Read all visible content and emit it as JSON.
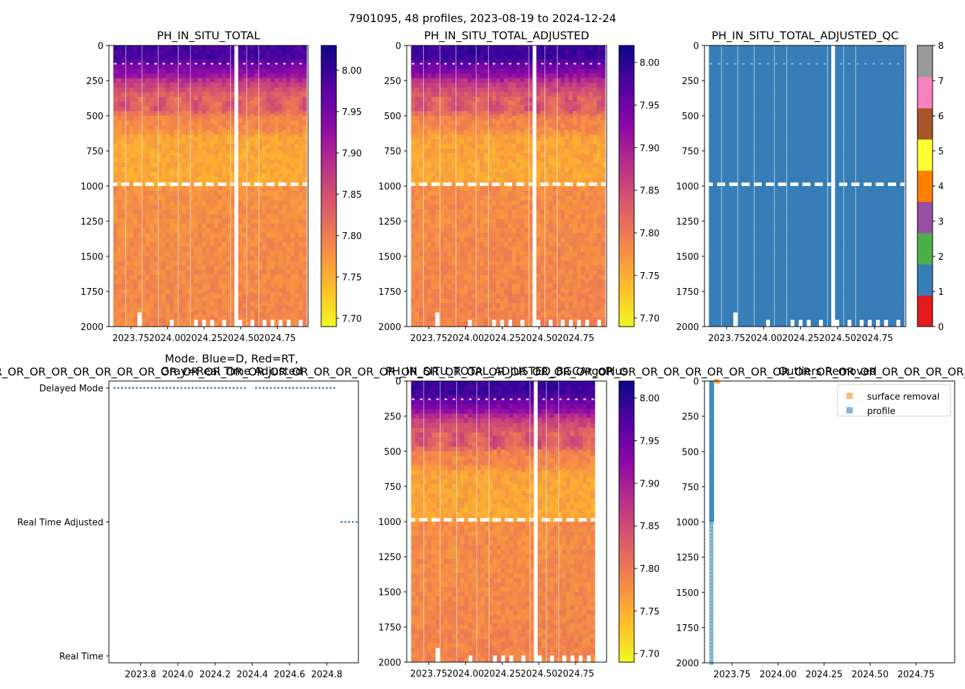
{
  "figure": {
    "suptitle": "7901095, 48 profiles, 2023-08-19 to 2024-12-24",
    "overflow_text": "R_OR_OR_OR_OR_OR_OR_OR_OR_OR_OR_OR_OR_OR_OR_OR_OR_OR_OR_OR_OR_OR_OR_OR_OR_OR_OR_OR_OR_OR_OR_OR_OR_OR_OR_OR_OR_OR_OR_OR_OR_OR_OR_OR_OR_OR_OR_OR_OR_OR_OR_OR_OR_OR_OR_OR_OR_OR_OR_OR_OR_OR_OR_OR_OR_"
  },
  "colors": {
    "qc_blue": "#377eb8",
    "mode_dots": "#1f77b4",
    "surface_removal": "#ff7f0e",
    "profile": "#1f77b4"
  },
  "chart_data": [
    {
      "id": "ph_in_situ_total",
      "type": "heatmap",
      "title": "PH_IN_SITU_TOTAL",
      "xlabel": "",
      "ylabel": "",
      "xlim": [
        2023.6,
        2024.96
      ],
      "ylim": [
        2000,
        0
      ],
      "xticks": [
        2023.75,
        2024.0,
        2024.25,
        2024.5,
        2024.75
      ],
      "xtick_labels": [
        "2023.75",
        "2024.00",
        "2024.25",
        "2024.50",
        "2024.75"
      ],
      "yticks": [
        0,
        250,
        500,
        750,
        1000,
        1250,
        1500,
        1750,
        2000
      ],
      "ytick_labels": [
        "0",
        "250",
        "500",
        "750",
        "1000",
        "1250",
        "1500",
        "1750",
        "2000"
      ],
      "colorbar": {
        "cmap": "plasma_r",
        "range": [
          7.69,
          8.03
        ],
        "ticks": [
          7.7,
          7.75,
          7.8,
          7.85,
          7.9,
          7.95,
          8.0
        ],
        "tick_labels": [
          "7.70",
          "7.75",
          "7.80",
          "7.85",
          "7.90",
          "7.95",
          "8.00"
        ]
      },
      "profile_start": 2023.63,
      "profile_end": 2024.95,
      "profile_count": 48,
      "gap": [
        2024.44,
        2024.47
      ]
    },
    {
      "id": "ph_in_situ_total_adjusted",
      "type": "heatmap",
      "title": "PH_IN_SITU_TOTAL_ADJUSTED",
      "xlabel": "",
      "ylabel": "",
      "xlim": [
        2023.6,
        2024.96
      ],
      "ylim": [
        2000,
        0
      ],
      "xticks": [
        2023.75,
        2024.0,
        2024.25,
        2024.5,
        2024.75
      ],
      "xtick_labels": [
        "2023.75",
        "2024.00",
        "2024.25",
        "2024.50",
        "2024.75"
      ],
      "yticks": [
        0,
        250,
        500,
        750,
        1000,
        1250,
        1500,
        1750,
        2000
      ],
      "ytick_labels": [
        "0",
        "250",
        "500",
        "750",
        "1000",
        "1250",
        "1500",
        "1750",
        "2000"
      ],
      "colorbar": {
        "cmap": "plasma_r",
        "range": [
          7.69,
          8.02
        ],
        "ticks": [
          7.7,
          7.75,
          7.8,
          7.85,
          7.9,
          7.95,
          8.0
        ],
        "tick_labels": [
          "7.70",
          "7.75",
          "7.80",
          "7.85",
          "7.90",
          "7.95",
          "8.00"
        ]
      },
      "profile_start": 2023.63,
      "profile_end": 2024.95,
      "profile_count": 48,
      "gap": [
        2024.44,
        2024.47
      ]
    },
    {
      "id": "ph_in_situ_total_adjusted_qc",
      "type": "heatmap",
      "title": "PH_IN_SITU_TOTAL_ADJUSTED_QC",
      "xlabel": "",
      "ylabel": "",
      "xlim": [
        2023.6,
        2024.96
      ],
      "ylim": [
        2000,
        0
      ],
      "xticks": [
        2023.75,
        2024.0,
        2024.25,
        2024.5,
        2024.75
      ],
      "xtick_labels": [
        "2023.75",
        "2024.00",
        "2024.25",
        "2024.50",
        "2024.75"
      ],
      "yticks": [
        0,
        250,
        500,
        750,
        1000,
        1250,
        1500,
        1750,
        2000
      ],
      "ytick_labels": [
        "0",
        "250",
        "500",
        "750",
        "1000",
        "1250",
        "1500",
        "1750",
        "2000"
      ],
      "value_everywhere": 1,
      "colorbar": {
        "cmap": "qc_categorical",
        "range": [
          0,
          8
        ],
        "colors": [
          "#e41a1c",
          "#377eb8",
          "#4daf4a",
          "#984ea3",
          "#ff7f00",
          "#ffff33",
          "#a65628",
          "#f781bf",
          "#999999"
        ],
        "ticks": [
          0,
          1,
          2,
          3,
          4,
          5,
          6,
          7,
          8
        ],
        "tick_labels": [
          "0",
          "1",
          "2",
          "3",
          "4",
          "5",
          "6",
          "7",
          "8"
        ]
      },
      "profile_start": 2023.63,
      "profile_end": 2024.95,
      "profile_count": 48,
      "gap": [
        2024.44,
        2024.47
      ]
    },
    {
      "id": "data_mode",
      "type": "scatter",
      "title": "Mode. Blue=D, Red=RT,",
      "title_line2": "Gray=Real Time Adjusted",
      "xlabel": "",
      "ylabel": "",
      "xlim": [
        2023.63,
        2024.97
      ],
      "xticks": [
        2023.8,
        2024.0,
        2024.2,
        2024.4,
        2024.6,
        2024.8
      ],
      "xtick_labels": [
        "2023.8",
        "2024.0",
        "2024.2",
        "2024.4",
        "2024.6",
        "2024.8"
      ],
      "categories": [
        "Real Time",
        "Real Time Adjusted",
        "Delayed Mode"
      ],
      "series": [
        {
          "name": "Delayed Mode",
          "level": 2,
          "x": [
            2023.66,
            2023.68,
            2023.7,
            2023.72,
            2023.74,
            2023.76,
            2023.78,
            2023.8,
            2023.82,
            2023.84,
            2023.86,
            2023.88,
            2023.9,
            2023.92,
            2023.94,
            2023.96,
            2023.98,
            2024.0,
            2024.02,
            2024.04,
            2024.06,
            2024.08,
            2024.1,
            2024.12,
            2024.14,
            2024.16,
            2024.18,
            2024.2,
            2024.22,
            2024.24,
            2024.26,
            2024.28,
            2024.3,
            2024.32,
            2024.34,
            2024.36,
            2024.42,
            2024.44,
            2024.46,
            2024.48,
            2024.5,
            2024.52,
            2024.54,
            2024.56,
            2024.58,
            2024.6,
            2024.62,
            2024.64,
            2024.66,
            2024.68,
            2024.7,
            2024.72,
            2024.74,
            2024.76,
            2024.78,
            2024.8,
            2024.82,
            2024.84
          ]
        },
        {
          "name": "Real Time Adjusted",
          "level": 1,
          "x": [
            2024.88,
            2024.9,
            2024.92,
            2024.94,
            2024.96
          ]
        }
      ]
    },
    {
      "id": "ph_in_situ_total_adjusted_bgcargoplus",
      "type": "heatmap",
      "title": "PH_IN_SITU_TOTAL_ADJUSTED_BGCArgoPlus",
      "xlabel": "",
      "ylabel": "",
      "xlim": [
        2023.6,
        2024.96
      ],
      "ylim": [
        2000,
        0
      ],
      "xticks": [
        2023.75,
        2024.0,
        2024.25,
        2024.5,
        2024.75
      ],
      "xtick_labels": [
        "2023.75",
        "2024.00",
        "2024.25",
        "2024.50",
        "2024.75"
      ],
      "yticks": [
        0,
        250,
        500,
        750,
        1000,
        1250,
        1500,
        1750,
        2000
      ],
      "ytick_labels": [
        "0",
        "250",
        "500",
        "750",
        "1000",
        "1250",
        "1500",
        "1750",
        "2000"
      ],
      "colorbar": {
        "cmap": "plasma_r",
        "range": [
          7.69,
          8.02
        ],
        "ticks": [
          7.7,
          7.75,
          7.8,
          7.85,
          7.9,
          7.95,
          8.0
        ],
        "tick_labels": [
          "7.70",
          "7.75",
          "7.80",
          "7.85",
          "7.90",
          "7.95",
          "8.00"
        ]
      },
      "profile_start": 2023.63,
      "profile_end": 2024.88,
      "profile_count": 45,
      "gap": [
        2024.44,
        2024.47
      ]
    },
    {
      "id": "outliers_removed",
      "type": "scatter",
      "title": "Outliers Removed",
      "xlabel": "",
      "ylabel": "",
      "xlim": [
        2023.6,
        2024.96
      ],
      "ylim": [
        2000,
        0
      ],
      "xticks": [
        2023.75,
        2024.0,
        2024.25,
        2024.5,
        2024.75
      ],
      "xtick_labels": [
        "2023.75",
        "2024.00",
        "2024.25",
        "2024.50",
        "2024.75"
      ],
      "yticks": [
        0,
        250,
        500,
        750,
        1000,
        1250,
        1500,
        1750,
        2000
      ],
      "ytick_labels": [
        "0",
        "250",
        "500",
        "750",
        "1000",
        "1250",
        "1500",
        "1750",
        "2000"
      ],
      "legend": {
        "placement": "top-right",
        "entries": [
          "surface removal",
          "profile"
        ]
      },
      "series": [
        {
          "name": "surface removal",
          "x": [
            2023.66,
            2023.67
          ],
          "y": [
            0,
            5
          ]
        },
        {
          "name": "profile",
          "x": [
            2023.63
          ],
          "y_range": [
            0,
            2000
          ]
        }
      ]
    }
  ]
}
